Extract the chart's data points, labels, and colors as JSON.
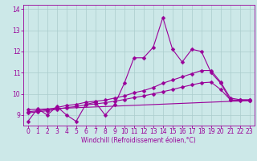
{
  "bg_color": "#cce8e8",
  "grid_color": "#aacccc",
  "line_color": "#990099",
  "xlabel": "Windchill (Refroidissement éolien,°C)",
  "xlim": [
    -0.5,
    23.5
  ],
  "ylim": [
    8.5,
    14.2
  ],
  "yticks": [
    9,
    10,
    11,
    12,
    13,
    14
  ],
  "xticks": [
    0,
    1,
    2,
    3,
    4,
    5,
    6,
    7,
    8,
    9,
    10,
    11,
    12,
    13,
    14,
    15,
    16,
    17,
    18,
    19,
    20,
    21,
    22,
    23
  ],
  "series1_x": [
    0,
    1,
    2,
    3,
    4,
    5,
    6,
    7,
    8,
    9,
    10,
    11,
    12,
    13,
    14,
    15,
    16,
    17,
    18,
    19,
    20,
    21,
    22,
    23
  ],
  "series1_y": [
    8.7,
    9.3,
    9.0,
    9.4,
    9.0,
    8.7,
    9.5,
    9.6,
    9.0,
    9.5,
    10.5,
    11.7,
    11.7,
    12.2,
    13.6,
    12.1,
    11.5,
    12.1,
    12.0,
    11.0,
    10.5,
    9.7,
    9.7,
    9.7
  ],
  "series2_x": [
    0,
    1,
    2,
    3,
    4,
    5,
    6,
    7,
    8,
    9,
    10,
    11,
    12,
    13,
    14,
    15,
    16,
    17,
    18,
    19,
    20,
    21,
    22,
    23
  ],
  "series2_y": [
    9.15,
    9.2,
    9.25,
    9.35,
    9.45,
    9.5,
    9.6,
    9.65,
    9.7,
    9.8,
    9.9,
    10.05,
    10.15,
    10.3,
    10.5,
    10.65,
    10.8,
    10.95,
    11.1,
    11.1,
    10.55,
    9.8,
    9.72,
    9.72
  ],
  "series3_x": [
    0,
    1,
    2,
    3,
    4,
    5,
    6,
    7,
    8,
    9,
    10,
    11,
    12,
    13,
    14,
    15,
    16,
    17,
    18,
    19,
    20,
    21,
    22,
    23
  ],
  "series3_y": [
    9.1,
    9.15,
    9.2,
    9.27,
    9.35,
    9.4,
    9.48,
    9.52,
    9.58,
    9.65,
    9.73,
    9.82,
    9.9,
    10.0,
    10.1,
    10.2,
    10.32,
    10.42,
    10.52,
    10.55,
    10.2,
    9.72,
    9.68,
    9.68
  ],
  "series4_x": [
    0,
    23
  ],
  "series4_y": [
    9.25,
    9.68
  ],
  "markersize": 2.5,
  "linewidth": 0.8,
  "tick_fontsize": 5.5,
  "xlabel_fontsize": 5.5
}
